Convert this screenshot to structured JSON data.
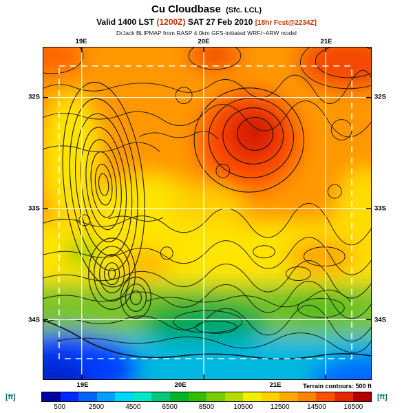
{
  "header": {
    "title": "Cu Cloudbase",
    "title_suffix": "(Sfc. LCL)",
    "valid_prefix": "Valid 1400 LST",
    "valid_zulu": "(1200Z)",
    "valid_date": "SAT 27 Feb 2010",
    "forecast_info": "[18hr Fcst@2234Z]",
    "model_line": "DrJack BLIPMAP from RASP 4.0km GFS-initiated WRF/~ARW model"
  },
  "map": {
    "lat_labels": [
      "32S",
      "33S",
      "34S"
    ],
    "lon_labels": [
      "19E",
      "20E",
      "21E"
    ]
  },
  "colorbar": {
    "unit_label": "[ft]",
    "terrain_note": "Terrain contours: 500 ft",
    "tick_labels": [
      "500",
      "2500",
      "4500",
      "6500",
      "8500",
      "10500",
      "12500",
      "14500",
      "16500"
    ],
    "colors": [
      "#0000a0",
      "#0028ff",
      "#0064ff",
      "#00a0ff",
      "#00d4ff",
      "#00e8c8",
      "#00c878",
      "#00b428",
      "#32be00",
      "#78cd00",
      "#b4dc00",
      "#f0f000",
      "#ffd200",
      "#ffaa00",
      "#ff8200",
      "#ff5000",
      "#e42800",
      "#b40000"
    ]
  },
  "colors": {
    "header_accent": "#c03000",
    "unit_label_color": "#007070",
    "grid_line": "#ffffff",
    "contour_line": "#101010"
  }
}
